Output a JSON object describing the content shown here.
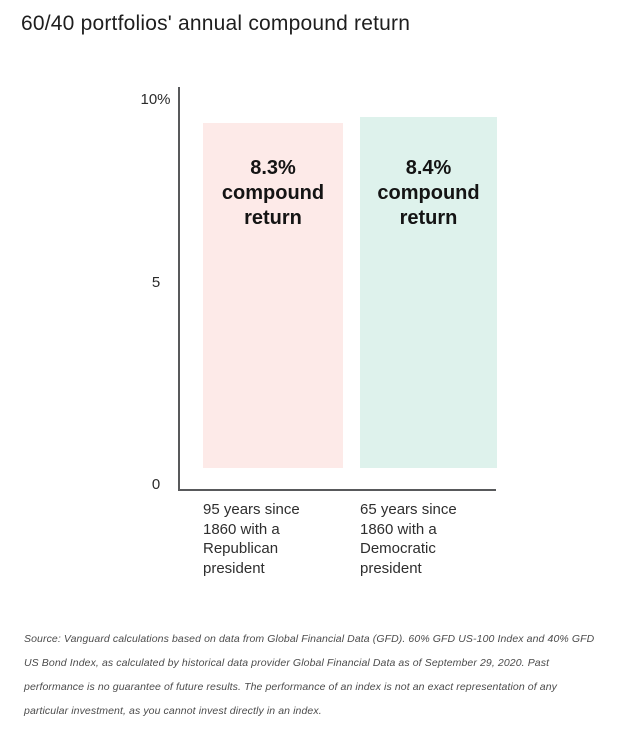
{
  "title": "60/40 portfolios' annual compound return",
  "y_axis": {
    "ticks": [
      "10%",
      "5",
      "0"
    ]
  },
  "bars": [
    {
      "value": 8.3,
      "value_label": "8.3%\ncompound\nreturn",
      "category_label": "95 years since\n1860 with a\nRepublican\npresident",
      "color": "#fdeae8"
    },
    {
      "value": 8.4,
      "value_label": "8.4%\ncompound\nreturn",
      "category_label": "65 years since\n1860 with a\nDemocratic\npresident",
      "color": "#def2ec"
    }
  ],
  "source": {
    "lines": [
      "Source: Vanguard calculations based on data from Global Financial Data (GFD). 60% GFD US-100 Index and 40% GFD",
      "US Bond Index, as calculated by historical data provider Global Financial Data as of September 29, 2020. Past",
      "performance is no guarantee of future results. The performance of an index is not an exact representation of any",
      "particular investment, as you cannot invest directly in an index."
    ]
  },
  "chart_data": {
    "type": "bar",
    "title": "60/40 portfolios' annual compound return",
    "categories": [
      "95 years since 1860 with a Republican president",
      "65 years since 1860 with a Democratic president"
    ],
    "values": [
      8.3,
      8.4
    ],
    "value_unit": "percent annual compound return",
    "bar_labels": [
      "8.3% compound return",
      "8.4% compound return"
    ],
    "bar_colors": [
      "#fdeae8",
      "#def2ec"
    ],
    "axis_color": "#58595b",
    "xlabel": "",
    "ylabel": "",
    "ylim": [
      0,
      10
    ],
    "yticks": [
      "10%",
      "5",
      "0"
    ],
    "grid": false,
    "legend": false,
    "source_note": "Source: Vanguard calculations based on data from Global Financial Data (GFD). 60% GFD US-100 Index and 40% GFD US Bond Index, as calculated by historical data provider Global Financial Data as of September 29, 2020. Past performance is no guarantee of future results. The performance of an index is not an exact representation of any particular investment, as you cannot invest directly in an index."
  }
}
